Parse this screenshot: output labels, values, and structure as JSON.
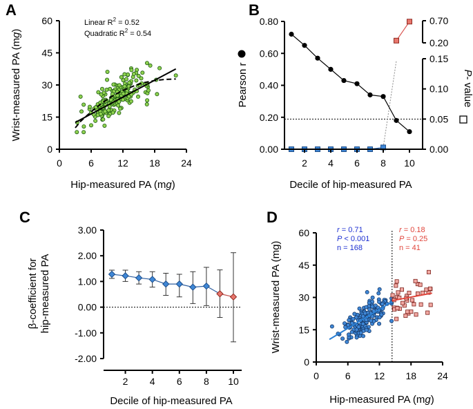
{
  "colors": {
    "green": "#8fd14f",
    "blue": "#3f87d6",
    "red": "#e8766c",
    "dark": "#000000",
    "lightline": "#aaaaaa"
  },
  "panels": {
    "A": "A",
    "B": "B",
    "C": "C",
    "D": "D"
  },
  "chart_data": [
    {
      "panel": "A",
      "type": "scatter",
      "xlabel": "Hip-measured PA (mg)",
      "ylabel": "Wrist-measured PA (mg)",
      "xlim": [
        0,
        24
      ],
      "ylim": [
        0,
        60
      ],
      "xticks": [
        "0",
        "6",
        "12",
        "18",
        "24"
      ],
      "yticks": [
        "0",
        "15",
        "30",
        "45",
        "60"
      ],
      "annotations": [
        "Linear R2 = 0.52",
        "Quadratic R2 = 0.54"
      ],
      "linear_fit": {
        "x": [
          3,
          22
        ],
        "y": [
          12.5,
          37.5
        ]
      },
      "quadratic_fit": {
        "x": [
          3,
          4,
          6,
          8,
          10,
          12,
          14,
          16,
          18,
          20,
          22
        ],
        "y": [
          10,
          13,
          17.5,
          21.5,
          24.8,
          27.5,
          29.5,
          31.1,
          32.1,
          32.6,
          32.8
        ]
      },
      "points_seed": 7,
      "points_n": 209
    },
    {
      "panel": "B",
      "type": "line",
      "xlabel": "Decile of hip-measured PA",
      "ylabel_left": "Pearson r",
      "ylabel_right": "P- value",
      "x": [
        1,
        2,
        3,
        4,
        5,
        6,
        7,
        8,
        9,
        10
      ],
      "xticks": [
        "2",
        "4",
        "6",
        "8",
        "10"
      ],
      "pearson_r": [
        0.72,
        0.65,
        0.57,
        0.5,
        0.43,
        0.41,
        0.34,
        0.33,
        0.18,
        0.11
      ],
      "p_values_low": [
        0.0,
        0.0,
        0.0,
        0.0,
        0.0,
        0.0,
        0.0,
        0.003
      ],
      "p_values_high": [
        {
          "x": 9,
          "y": 0.25
        },
        {
          "x": 10,
          "y": 0.68
        }
      ],
      "left_yticks": [
        "0.00",
        "0.20",
        "0.40",
        "0.60",
        "0.80"
      ],
      "right_low_ticks": [
        "0.00",
        "0.05",
        "0.10",
        "0.15"
      ],
      "right_high_ticks": [
        "0.20",
        "0.70"
      ],
      "threshold_p": 0.05
    },
    {
      "panel": "C",
      "type": "line",
      "xlabel": "Decile of hip-measured PA",
      "ylabel": "β-coefficient for\nhip-measured PA",
      "ylabel_line1": "β-coefficient  for",
      "ylabel_line2": "hip-measured PA",
      "x": [
        1,
        2,
        3,
        4,
        5,
        6,
        7,
        8,
        9,
        10
      ],
      "xticks": [
        "2",
        "4",
        "6",
        "8",
        "10"
      ],
      "yticks": [
        "-2.00",
        "-1.00",
        "0.00",
        "1.00",
        "2.00",
        "3.00"
      ],
      "ylim": [
        -2,
        3
      ],
      "beta": [
        1.28,
        1.22,
        1.14,
        1.08,
        0.9,
        0.9,
        0.78,
        0.82,
        0.52,
        0.4
      ],
      "ci_low": [
        1.12,
        1.0,
        0.9,
        0.78,
        0.46,
        0.4,
        0.14,
        0.06,
        -0.4,
        -1.35
      ],
      "ci_high": [
        1.44,
        1.44,
        1.38,
        1.38,
        1.32,
        1.28,
        1.38,
        1.55,
        1.45,
        2.12
      ]
    },
    {
      "panel": "D",
      "type": "scatter",
      "xlabel": "Hip-measured PA (mg)",
      "ylabel": "Wrist-measured PA (mg)",
      "xlim": [
        0,
        24
      ],
      "ylim": [
        0,
        60
      ],
      "xticks": [
        "0",
        "6",
        "12",
        "18",
        "24"
      ],
      "yticks": [
        "0",
        "15",
        "30",
        "45",
        "60"
      ],
      "cutoff_x": 14.4,
      "low_group": {
        "r": "r = 0.71",
        "p": "P < 0.001",
        "n": "n = 168",
        "fit": {
          "x": [
            2.5,
            14.4
          ],
          "y": [
            10.5,
            28
          ]
        }
      },
      "high_group": {
        "r": "r = 0.18",
        "p": "P = 0.25",
        "n": "n = 41",
        "fit": {
          "x": [
            14.4,
            22
          ],
          "y": [
            28.5,
            32
          ]
        }
      }
    }
  ]
}
